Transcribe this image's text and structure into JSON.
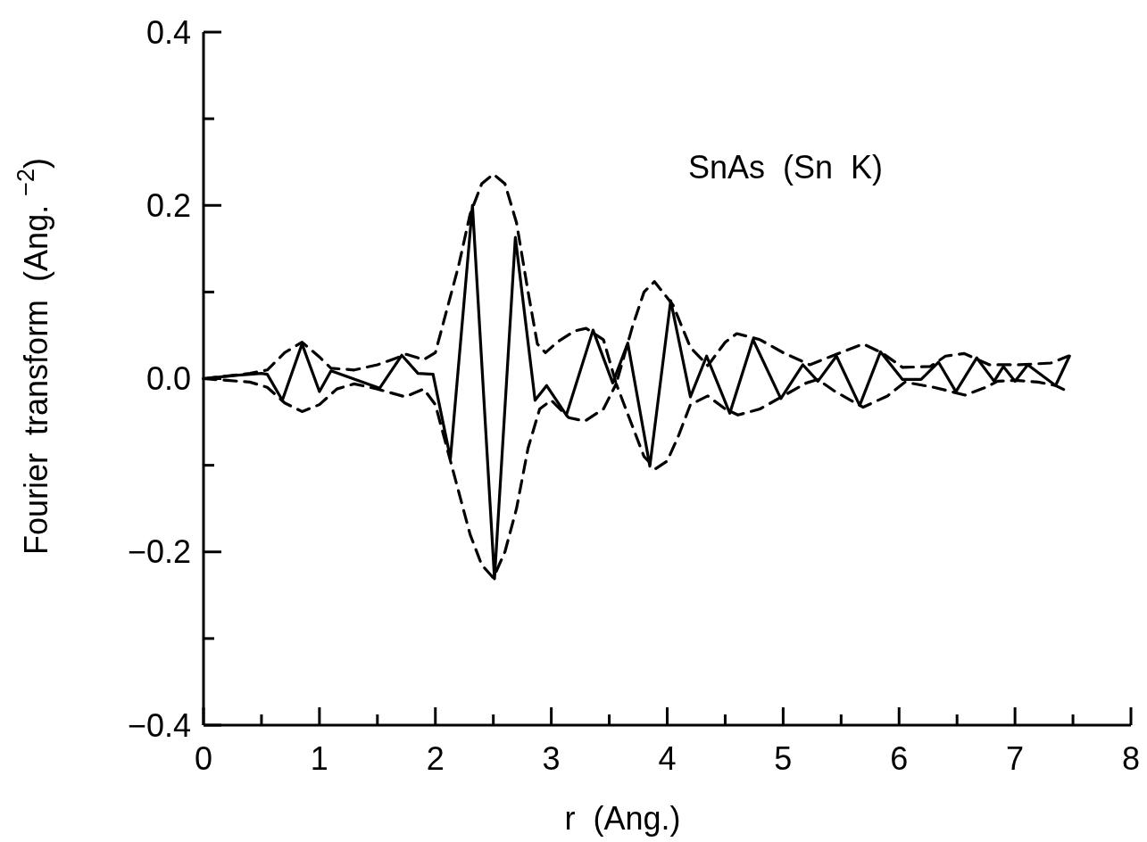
{
  "chart_data": {
    "type": "line",
    "xlabel": "r  (Ang.)",
    "ylabel": "Fourier  transform  (Ang. $^{−2}$)",
    "annotations": [
      "SnAs  (Sn  K)"
    ],
    "xlim": [
      0,
      8
    ],
    "ylim": [
      -0.4,
      0.4
    ],
    "xticks": [
      0,
      {
        "value": 0.5,
        "label": null
      },
      1,
      {
        "value": 1.5,
        "label": null
      },
      2,
      {
        "value": 2.5,
        "label": null
      },
      3,
      {
        "value": 3.5,
        "label": null
      },
      4,
      {
        "value": 4.5,
        "label": null
      },
      5,
      {
        "value": 5.5,
        "label": null
      },
      6,
      {
        "value": 6.5,
        "label": null
      },
      7,
      {
        "value": 7.5,
        "label": null
      },
      8
    ],
    "yticks": [
      {
        "value": -0.4,
        "label": "−0.4"
      },
      {
        "value": -0.3,
        "label": null
      },
      {
        "value": -0.2,
        "label": "−0.2"
      },
      {
        "value": -0.1,
        "label": null
      },
      {
        "value": 0,
        "label": "0.0"
      },
      {
        "value": 0.1,
        "label": null
      },
      0.2,
      {
        "value": 0.3,
        "label": null
      },
      0.4
    ],
    "series": [
      {
        "color": "#000000",
        "line_style": "solid",
        "x": [
          0,
          0.3,
          0.5,
          0.55,
          0.68,
          0.85,
          1.0,
          1.1,
          1.52,
          1.71,
          1.85,
          1.98,
          2.13,
          2.32,
          2.51,
          2.69,
          2.86,
          2.96,
          3.13,
          3.36,
          3.53,
          3.66,
          3.85,
          4.03,
          4.2,
          4.34,
          4.54,
          4.74,
          4.98,
          5.17,
          5.3,
          5.46,
          5.66,
          5.84,
          6.03,
          6.19,
          6.34,
          6.49,
          6.67,
          6.82,
          6.9,
          7.0,
          7.11,
          7.35,
          7.47
        ],
        "values": [
          0,
          0.004,
          0.006,
          0.005,
          -0.025,
          0.04,
          -0.015,
          0.009,
          -0.011,
          0.027,
          0.006,
          0.005,
          -0.092,
          0.2,
          -0.231,
          0.163,
          -0.025,
          -0.008,
          -0.042,
          0.056,
          -0.005,
          0.041,
          -0.101,
          0.09,
          -0.021,
          0.026,
          -0.04,
          0.045,
          -0.023,
          0.016,
          -0.003,
          0.026,
          -0.031,
          0.031,
          -0.001,
          -0.001,
          0.019,
          -0.015,
          0.024,
          -0.003,
          0.014,
          -0.003,
          0.016,
          -0.008,
          0.026
        ]
      },
      {
        "color": "#000000",
        "line_style": "dashed",
        "x": [
          0,
          0.2,
          0.4,
          0.55,
          0.7,
          0.85,
          1.0,
          1.1,
          1.3,
          1.5,
          1.75,
          1.9,
          2.0,
          2.1,
          2.2,
          2.3,
          2.4,
          2.5,
          2.6,
          2.7,
          2.8,
          2.88,
          2.95,
          3.05,
          3.2,
          3.3,
          3.45,
          3.56,
          3.7,
          3.8,
          3.89,
          4.05,
          4.2,
          4.35,
          4.5,
          4.6,
          4.8,
          5.0,
          5.23,
          5.4,
          5.69,
          5.85,
          6.03,
          6.27,
          6.4,
          6.56,
          6.78,
          7.04,
          7.31,
          7.46
        ],
        "values": [
          0,
          0.003,
          0.006,
          0.01,
          0.03,
          0.042,
          0.025,
          0.012,
          0.01,
          0.016,
          0.028,
          0.022,
          0.03,
          0.08,
          0.13,
          0.19,
          0.225,
          0.236,
          0.225,
          0.18,
          0.1,
          0.04,
          0.03,
          0.042,
          0.055,
          0.058,
          0.045,
          -0.006,
          0.06,
          0.1,
          0.112,
          0.085,
          0.036,
          0.015,
          0.042,
          0.052,
          0.045,
          0.03,
          0.016,
          0.025,
          0.04,
          0.03,
          0.013,
          0.014,
          0.026,
          0.029,
          0.016,
          0.016,
          0.018,
          0.026
        ]
      },
      {
        "color": "#000000",
        "line_style": "dashed",
        "x": [
          0,
          0.2,
          0.4,
          0.55,
          0.7,
          0.85,
          1.0,
          1.15,
          1.3,
          1.5,
          1.74,
          1.9,
          2.0,
          2.1,
          2.2,
          2.3,
          2.4,
          2.5,
          2.6,
          2.7,
          2.8,
          2.9,
          3.0,
          3.15,
          3.29,
          3.45,
          3.56,
          3.7,
          3.8,
          3.9,
          4.0,
          4.1,
          4.2,
          4.35,
          4.5,
          4.61,
          4.8,
          5.0,
          5.2,
          5.3,
          5.45,
          5.69,
          5.9,
          6.05,
          6.3,
          6.57,
          6.75,
          6.85,
          7.0,
          7.2,
          7.35,
          7.46
        ],
        "values": [
          0,
          -0.002,
          -0.004,
          -0.01,
          -0.028,
          -0.038,
          -0.03,
          -0.012,
          -0.006,
          -0.012,
          -0.021,
          -0.012,
          -0.03,
          -0.08,
          -0.13,
          -0.18,
          -0.215,
          -0.23,
          -0.2,
          -0.15,
          -0.08,
          -0.035,
          -0.025,
          -0.045,
          -0.049,
          -0.035,
          -0.006,
          -0.055,
          -0.09,
          -0.104,
          -0.095,
          -0.065,
          -0.03,
          -0.02,
          -0.035,
          -0.042,
          -0.035,
          -0.02,
          -0.005,
          -0.001,
          -0.015,
          -0.033,
          -0.02,
          -0.004,
          -0.01,
          -0.019,
          -0.01,
          -0.003,
          -0.002,
          -0.004,
          -0.008,
          -0.015
        ]
      }
    ]
  }
}
